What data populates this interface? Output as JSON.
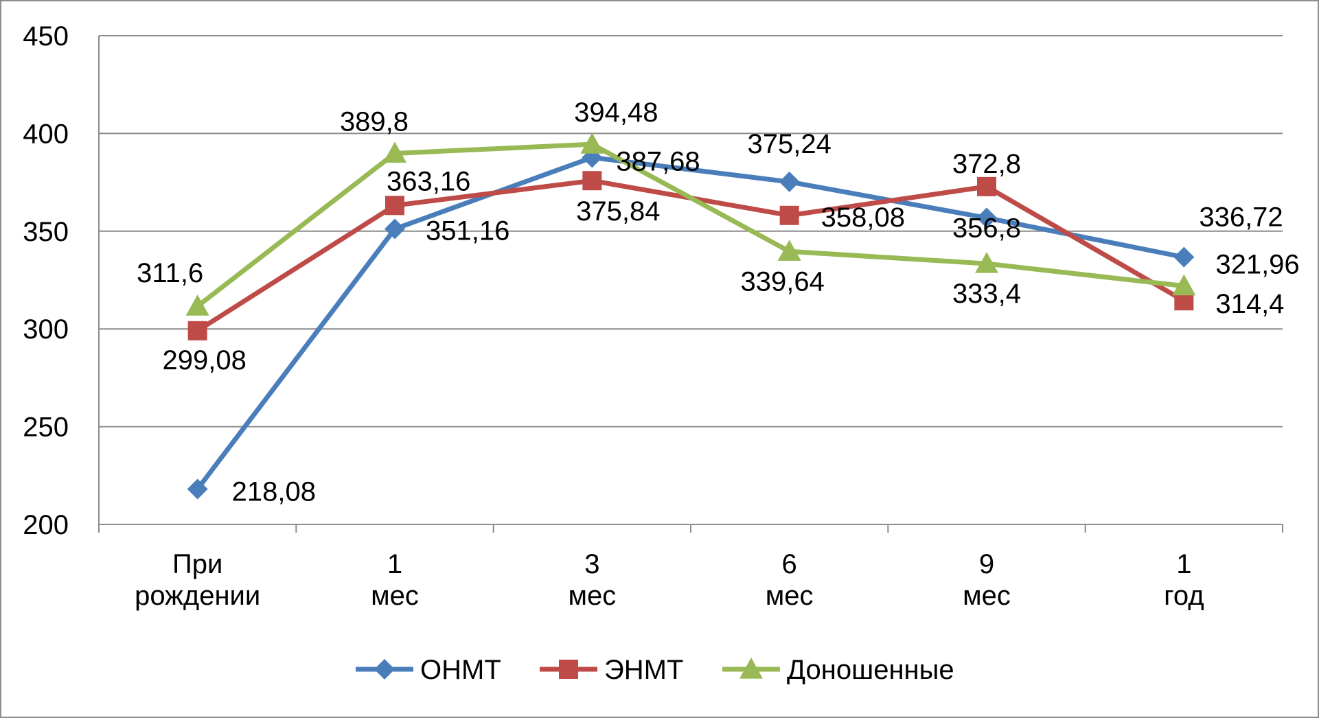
{
  "chart_data": {
    "type": "line",
    "title": "",
    "xlabel": "",
    "ylabel": "",
    "ylim": [
      200,
      450
    ],
    "yticks": [
      "200",
      "250",
      "300",
      "350",
      "400",
      "450"
    ],
    "grid": true,
    "legend_position": "bottom",
    "categories": [
      "При рождении",
      "1 мес",
      "3 мес",
      "6 мес",
      "9 мес",
      "1 год"
    ],
    "series": [
      {
        "name": "ОНМТ",
        "color": "#4a7ebb",
        "marker": "diamond",
        "values": [
          218.08,
          351.16,
          387.68,
          375.24,
          356.8,
          336.72
        ],
        "labels": [
          "218,08",
          "351,16",
          "387,68",
          "375,24",
          "356,8",
          "336,72"
        ]
      },
      {
        "name": "ЭНМТ",
        "color": "#be4b48",
        "marker": "square",
        "values": [
          299.08,
          363.16,
          375.84,
          358.08,
          372.8,
          314.4
        ],
        "labels": [
          "299,08",
          "363,16",
          "375,84",
          "358,08",
          "372,8",
          "314,4"
        ]
      },
      {
        "name": "Доношенные",
        "color": "#98b954",
        "marker": "triangle",
        "values": [
          311.6,
          389.8,
          394.48,
          339.64,
          333.4,
          321.96
        ],
        "labels": [
          "311,6",
          "389,8",
          "394,48",
          "339,64",
          "333,4",
          "321,96"
        ]
      }
    ]
  }
}
